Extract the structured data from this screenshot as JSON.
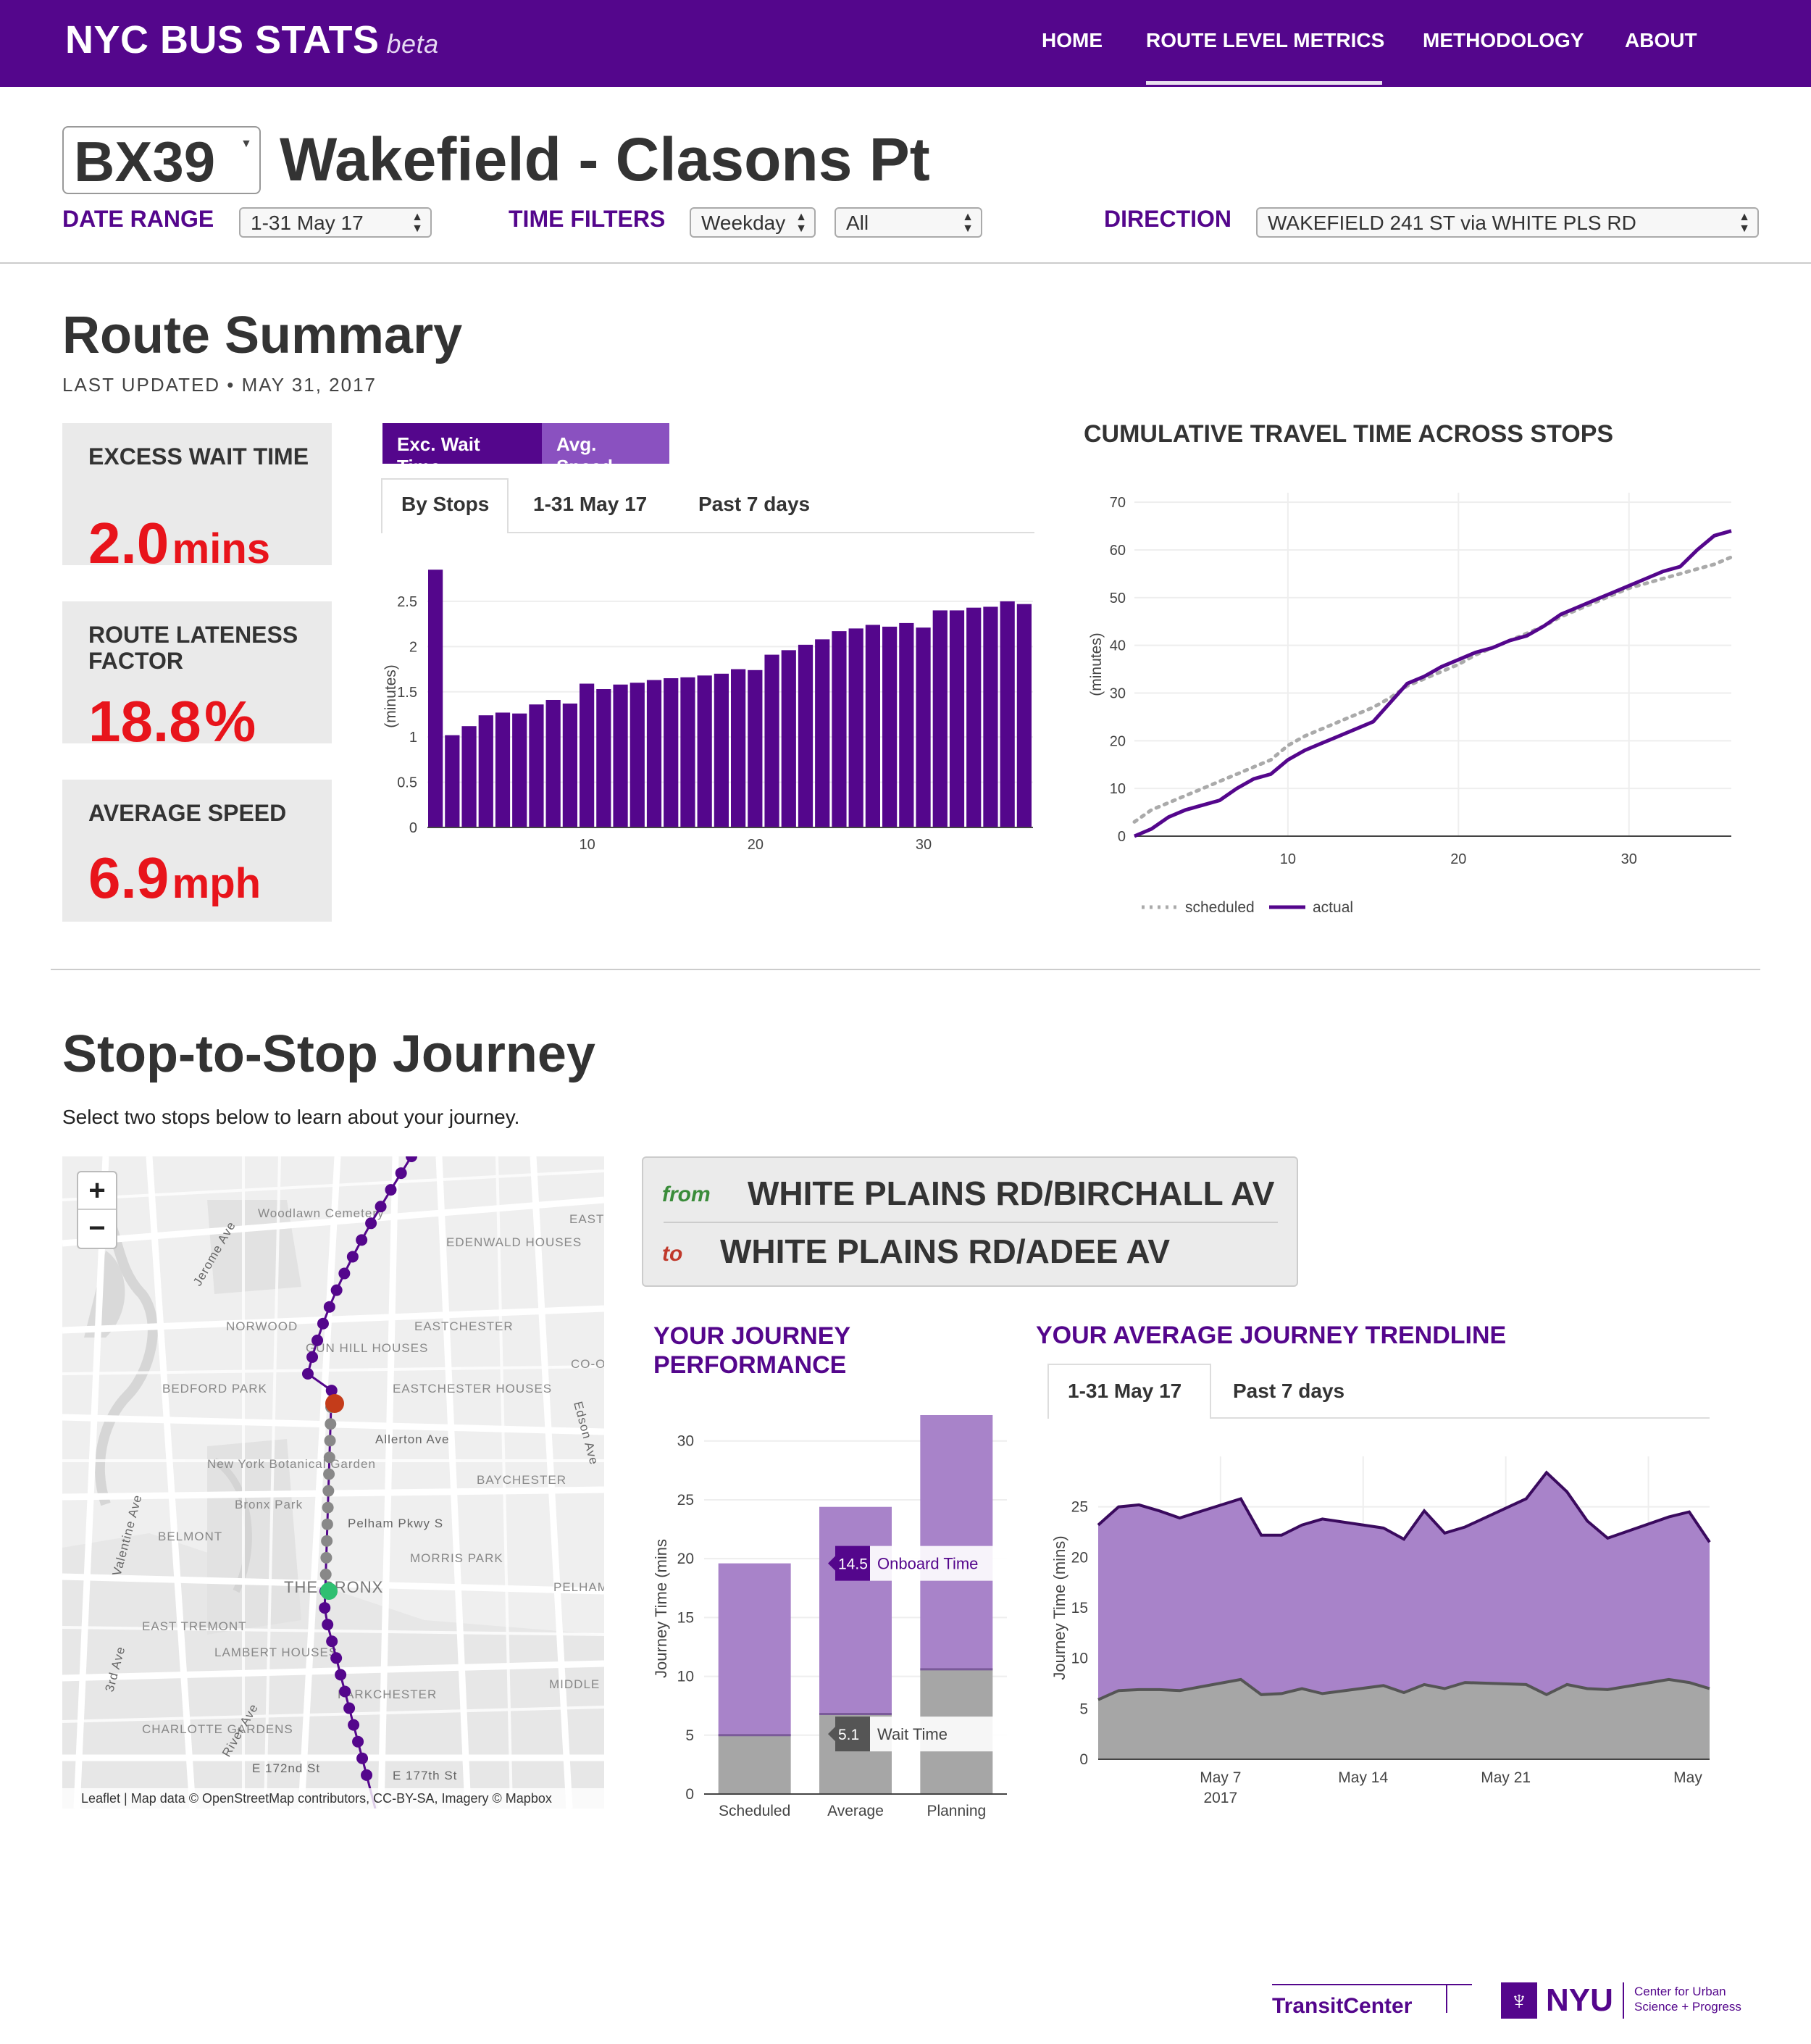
{
  "nav": {
    "brand": "NYC BUS STATS",
    "beta": "beta",
    "items": [
      "HOME",
      "ROUTE LEVEL METRICS",
      "METHODOLOGY",
      "ABOUT"
    ]
  },
  "route": {
    "code": "BX39",
    "name": "Wakefield - Clasons Pt"
  },
  "filters": {
    "date_range_label": "DATE RANGE",
    "date_range_value": "1-31 May 17",
    "time_filters_label": "TIME FILTERS",
    "day_value": "Weekday",
    "time_value": "All",
    "direction_label": "DIRECTION",
    "direction_value": "WAKEFIELD 241 ST via WHITE PLS RD"
  },
  "summary": {
    "title": "Route Summary",
    "updated": "LAST UPDATED • MAY 31, 2017",
    "metrics": [
      {
        "label": "EXCESS WAIT TIME",
        "value": "2.0",
        "unit": "mins"
      },
      {
        "label": "ROUTE LATENESS FACTOR",
        "value": "18.8",
        "unit": "%"
      },
      {
        "label": "AVERAGE SPEED",
        "value": "6.9",
        "unit": "mph"
      }
    ],
    "toggles": [
      "Exc. Wait Time",
      "Avg. Speed"
    ],
    "tabs": [
      "By Stops",
      "1-31 May 17",
      "Past 7 days"
    ],
    "cum_title": "CUMULATIVE TRAVEL TIME ACROSS STOPS"
  },
  "journey": {
    "title": "Stop-to-Stop Journey",
    "instructions": "Select two stops below to learn about your journey.",
    "from_label": "from",
    "from_stop": "WHITE PLAINS RD/BIRCHALL AV",
    "to_label": "to",
    "to_stop": "WHITE PLAINS RD/ADEE AV",
    "perf_title": "YOUR JOURNEY PERFORMANCE",
    "trend_title": "YOUR AVERAGE JOURNEY TRENDLINE",
    "trend_tabs": [
      "1-31 May 17",
      "Past 7 days"
    ],
    "onboard_tip_value": "14.5",
    "onboard_tip_label": "Onboard Time",
    "wait_tip_value": "5.1",
    "wait_tip_label": "Wait Time"
  },
  "map": {
    "zoom_in": "+",
    "zoom_out": "−",
    "labels": [
      "Woodlawn Cemetery",
      "EDENWALD HOUSES",
      "NORWOOD",
      "EASTCHESTER",
      "BEDFORD PARK",
      "EASTCHESTER HOUSES",
      "Allerton Ave",
      "New York Botanical Garden",
      "BAYCHESTER",
      "Bronx Park",
      "Pelham Pkwy S",
      "BELMONT",
      "MORRIS PARK",
      "THE BRONX",
      "EAST TREMONT",
      "LAMBERT HOUSES",
      "PARKCHESTER",
      "CHARLOTTE GARDENS",
      "E 172nd St",
      "E 177th St",
      "Jerome Ave",
      "Valentine Ave",
      "3rd Ave",
      "River Ave",
      "Edson Ave",
      "GUN HILL HOUSES",
      "MIDDLE",
      "PELHAM",
      "CO-O",
      "EAST"
    ],
    "attribution": "Leaflet | Map data © OpenStreetMap contributors, CC-BY-SA, Imagery © Mapbox"
  },
  "colors": {
    "purple": "#54068c",
    "purple_light": "#a883c9",
    "gray": "#a6a6a6",
    "red": "#e8141b"
  },
  "footer": {
    "transit": "TransitCenter",
    "nyu": "NYU",
    "cusp": "Center for Urban Science + Progress"
  },
  "chart_data": [
    {
      "id": "excess-wait-by-stops",
      "type": "bar",
      "ylabel": "(minutes)",
      "x": [
        1,
        2,
        3,
        4,
        5,
        6,
        7,
        8,
        9,
        10,
        11,
        12,
        13,
        14,
        15,
        16,
        17,
        18,
        19,
        20,
        21,
        22,
        23,
        24,
        25,
        26,
        27,
        28,
        29,
        30,
        31,
        32,
        33,
        34,
        35,
        36
      ],
      "values": [
        2.85,
        1.02,
        1.12,
        1.24,
        1.27,
        1.26,
        1.36,
        1.41,
        1.37,
        1.59,
        1.53,
        1.58,
        1.6,
        1.63,
        1.65,
        1.66,
        1.68,
        1.7,
        1.75,
        1.74,
        1.91,
        1.96,
        2.02,
        2.08,
        2.17,
        2.2,
        2.24,
        2.22,
        2.26,
        2.21,
        2.4,
        2.4,
        2.43,
        2.44,
        2.5,
        2.47
      ],
      "xticks": [
        10,
        20,
        30
      ],
      "yticks": [
        0,
        0.5,
        1,
        1.5,
        2,
        2.5
      ],
      "ylim": [
        0,
        2.9
      ]
    },
    {
      "id": "cumulative-travel-time",
      "type": "line",
      "ylabel": "(minutes)",
      "x": [
        1,
        2,
        3,
        4,
        5,
        6,
        7,
        8,
        9,
        10,
        11,
        12,
        13,
        14,
        15,
        16,
        17,
        18,
        19,
        20,
        21,
        22,
        23,
        24,
        25,
        26,
        27,
        28,
        29,
        30,
        31,
        32,
        33,
        34,
        35,
        36
      ],
      "series": [
        {
          "name": "scheduled",
          "values": [
            3,
            5.5,
            7,
            8.5,
            10,
            11.5,
            13,
            14.5,
            16,
            19,
            21,
            22.5,
            24,
            25.5,
            27,
            29,
            31.5,
            33,
            34.5,
            36,
            38,
            39.5,
            41,
            42.5,
            44,
            46,
            47.5,
            49,
            50.5,
            52,
            53,
            54,
            55,
            56,
            57,
            58.5
          ]
        },
        {
          "name": "actual",
          "values": [
            0,
            1.5,
            4,
            5.5,
            6.5,
            7.5,
            10,
            12,
            13,
            16,
            18,
            19.5,
            21,
            22.5,
            24,
            28,
            32,
            33.5,
            35.5,
            37,
            38.5,
            39.5,
            41,
            42,
            44,
            46.5,
            48,
            49.5,
            51,
            52.5,
            54,
            55.5,
            56.5,
            60,
            63,
            64
          ]
        }
      ],
      "xticks": [
        10,
        20,
        30
      ],
      "yticks": [
        0,
        10,
        20,
        30,
        40,
        50,
        60,
        70
      ],
      "ylim": [
        0,
        72
      ],
      "legend": "bottom"
    },
    {
      "id": "journey-performance",
      "type": "bar",
      "ylabel": "Journey Time (mins",
      "categories": [
        "Scheduled",
        "Average",
        "Planning"
      ],
      "series": [
        {
          "name": "Wait Time",
          "values": [
            5.0,
            6.8,
            10.6
          ]
        },
        {
          "name": "Onboard Time",
          "values": [
            14.6,
            17.6,
            21.6
          ]
        }
      ],
      "yticks": [
        0,
        5,
        10,
        15,
        20,
        25,
        30
      ],
      "ylim": [
        0,
        33
      ]
    },
    {
      "id": "journey-trendline",
      "type": "area",
      "ylabel": "Journey Time (mins)",
      "x": [
        "2017-05-01",
        "2017-05-02",
        "2017-05-03",
        "2017-05-04",
        "2017-05-05",
        "2017-05-08",
        "2017-05-09",
        "2017-05-10",
        "2017-05-11",
        "2017-05-12",
        "2017-05-15",
        "2017-05-16",
        "2017-05-17",
        "2017-05-18",
        "2017-05-19",
        "2017-05-22",
        "2017-05-23",
        "2017-05-24",
        "2017-05-25",
        "2017-05-26",
        "2017-05-29",
        "2017-05-30",
        "2017-05-31"
      ],
      "series": [
        {
          "name": "Wait Time",
          "values": [
            5.9,
            6.8,
            6.9,
            6.9,
            6.8,
            7.9,
            6.4,
            6.5,
            7.0,
            6.5,
            7.3,
            6.6,
            7.4,
            7.0,
            7.6,
            7.4,
            6.4,
            7.4,
            7.0,
            6.9,
            7.9,
            7.6,
            7.0
          ]
        },
        {
          "name": "Total",
          "values": [
            23.2,
            25.0,
            25.2,
            24.6,
            23.9,
            25.8,
            22.2,
            22.2,
            23.2,
            23.8,
            22.9,
            21.8,
            24.6,
            22.4,
            23.0,
            25.8,
            28.4,
            26.5,
            23.6,
            21.9,
            24.0,
            24.5,
            21.5
          ]
        }
      ],
      "xticks": [
        "May 7\n2017",
        "May 14",
        "May 21",
        "May"
      ],
      "yticks": [
        0,
        5,
        10,
        15,
        20,
        25
      ],
      "ylim": [
        0,
        30
      ]
    }
  ]
}
